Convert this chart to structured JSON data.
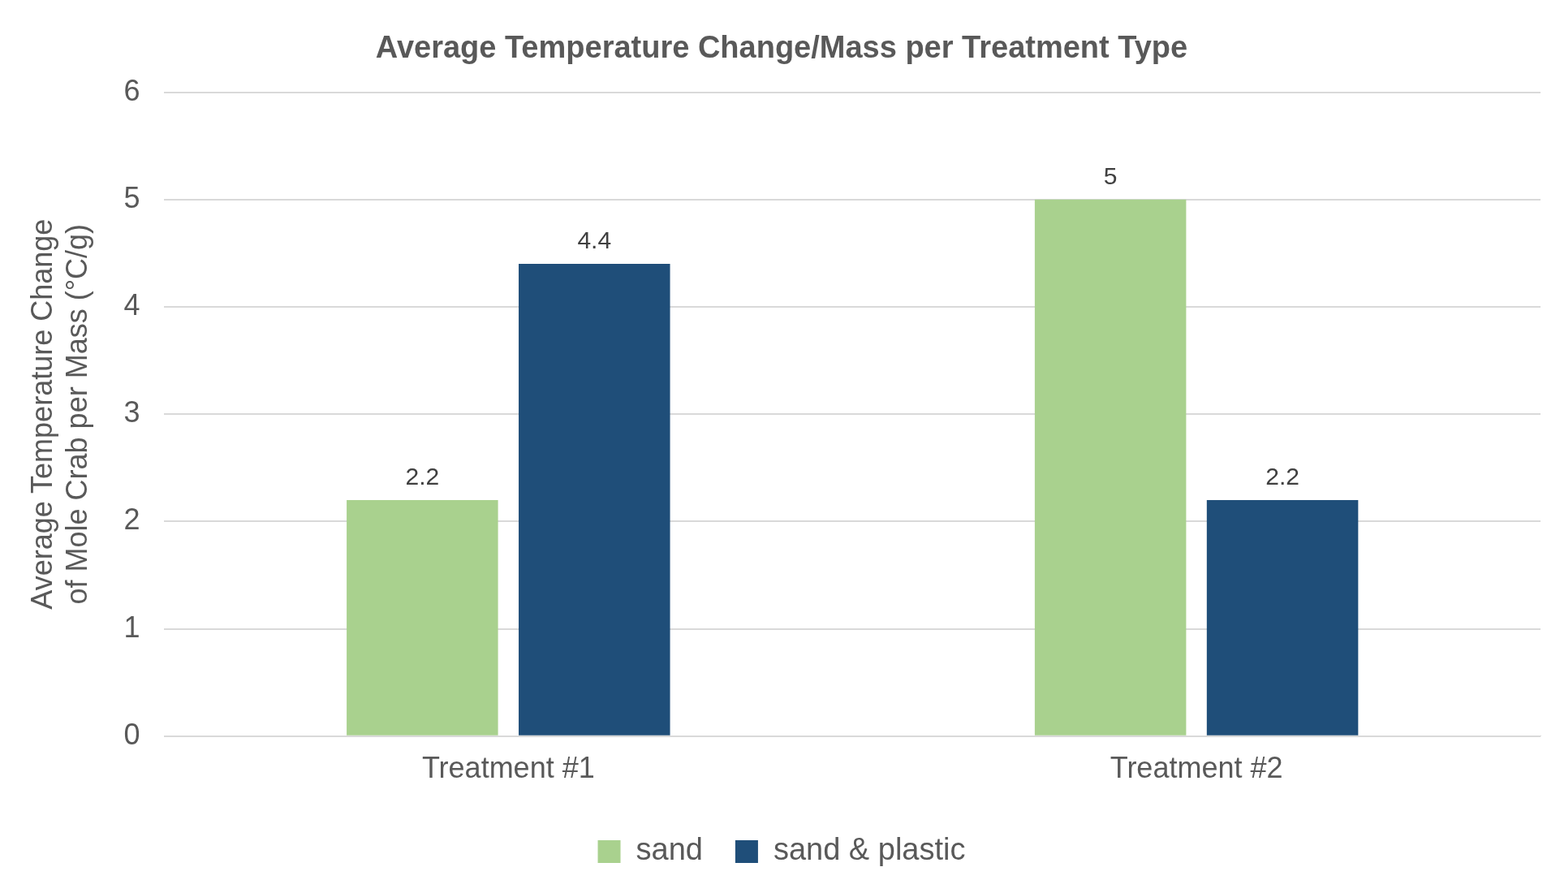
{
  "chart_data": {
    "type": "bar",
    "title": "Average Temperature Change/Mass per Treatment Type",
    "ylabel": "Average Temperature Change of Mole Crab per Mass (°C/g)",
    "categories": [
      "Treatment #1",
      "Treatment #2"
    ],
    "series": [
      {
        "name": "sand",
        "color": "#a9d18e",
        "values": [
          2.2,
          5
        ]
      },
      {
        "name": "sand & plastic",
        "color": "#1f4e79",
        "values": [
          4.4,
          2.2
        ]
      }
    ],
    "ylim": [
      0,
      6
    ],
    "yticks": [
      0,
      1,
      2,
      3,
      4,
      5,
      6
    ],
    "grid": "y",
    "legend": "bottom",
    "data_labels": true
  }
}
